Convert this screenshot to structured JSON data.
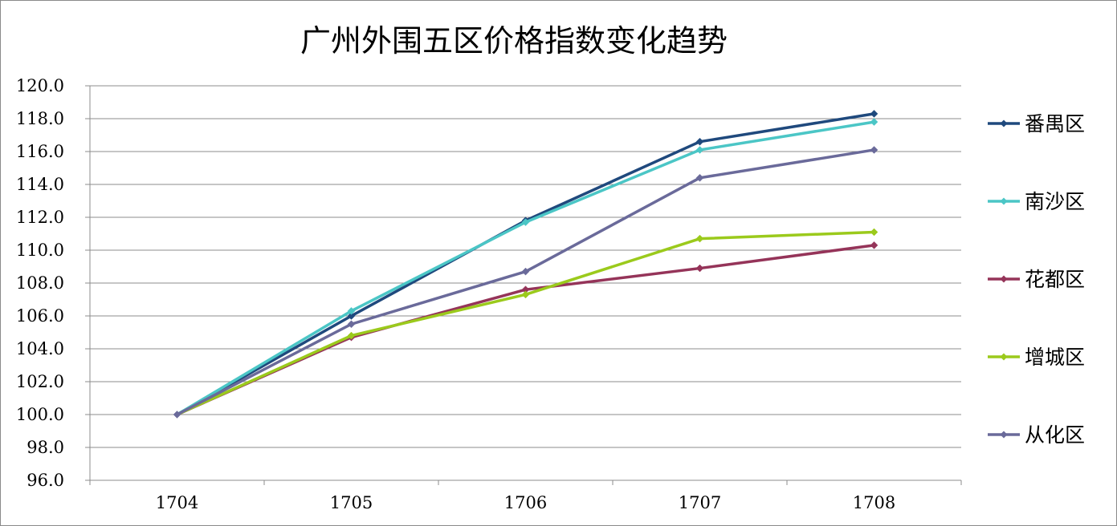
{
  "chart_data": {
    "type": "line",
    "title": "广州外围五区价格指数变化趋势",
    "categories": [
      "1704",
      "1705",
      "1706",
      "1707",
      "1708"
    ],
    "ylim": [
      96.0,
      120.0
    ],
    "y_ticks": [
      "96.0",
      "98.0",
      "100.0",
      "102.0",
      "104.0",
      "106.0",
      "108.0",
      "110.0",
      "112.0",
      "114.0",
      "116.0",
      "118.0",
      "120.0"
    ],
    "grid": true,
    "legend_position": "right",
    "series": [
      {
        "name": "番禺区",
        "color": "#1f497d",
        "values": [
          100.0,
          106.0,
          111.8,
          116.6,
          118.3
        ]
      },
      {
        "name": "南沙区",
        "color": "#4bc6c6",
        "values": [
          100.0,
          106.3,
          111.7,
          116.1,
          117.8
        ]
      },
      {
        "name": "花都区",
        "color": "#953459",
        "values": [
          100.0,
          104.7,
          107.6,
          108.9,
          110.3
        ]
      },
      {
        "name": "增城区",
        "color": "#9bca1c",
        "values": [
          100.0,
          104.8,
          107.3,
          110.7,
          111.1
        ]
      },
      {
        "name": "从化区",
        "color": "#6a6a9a",
        "values": [
          100.0,
          105.5,
          108.7,
          114.4,
          116.1
        ]
      }
    ]
  }
}
